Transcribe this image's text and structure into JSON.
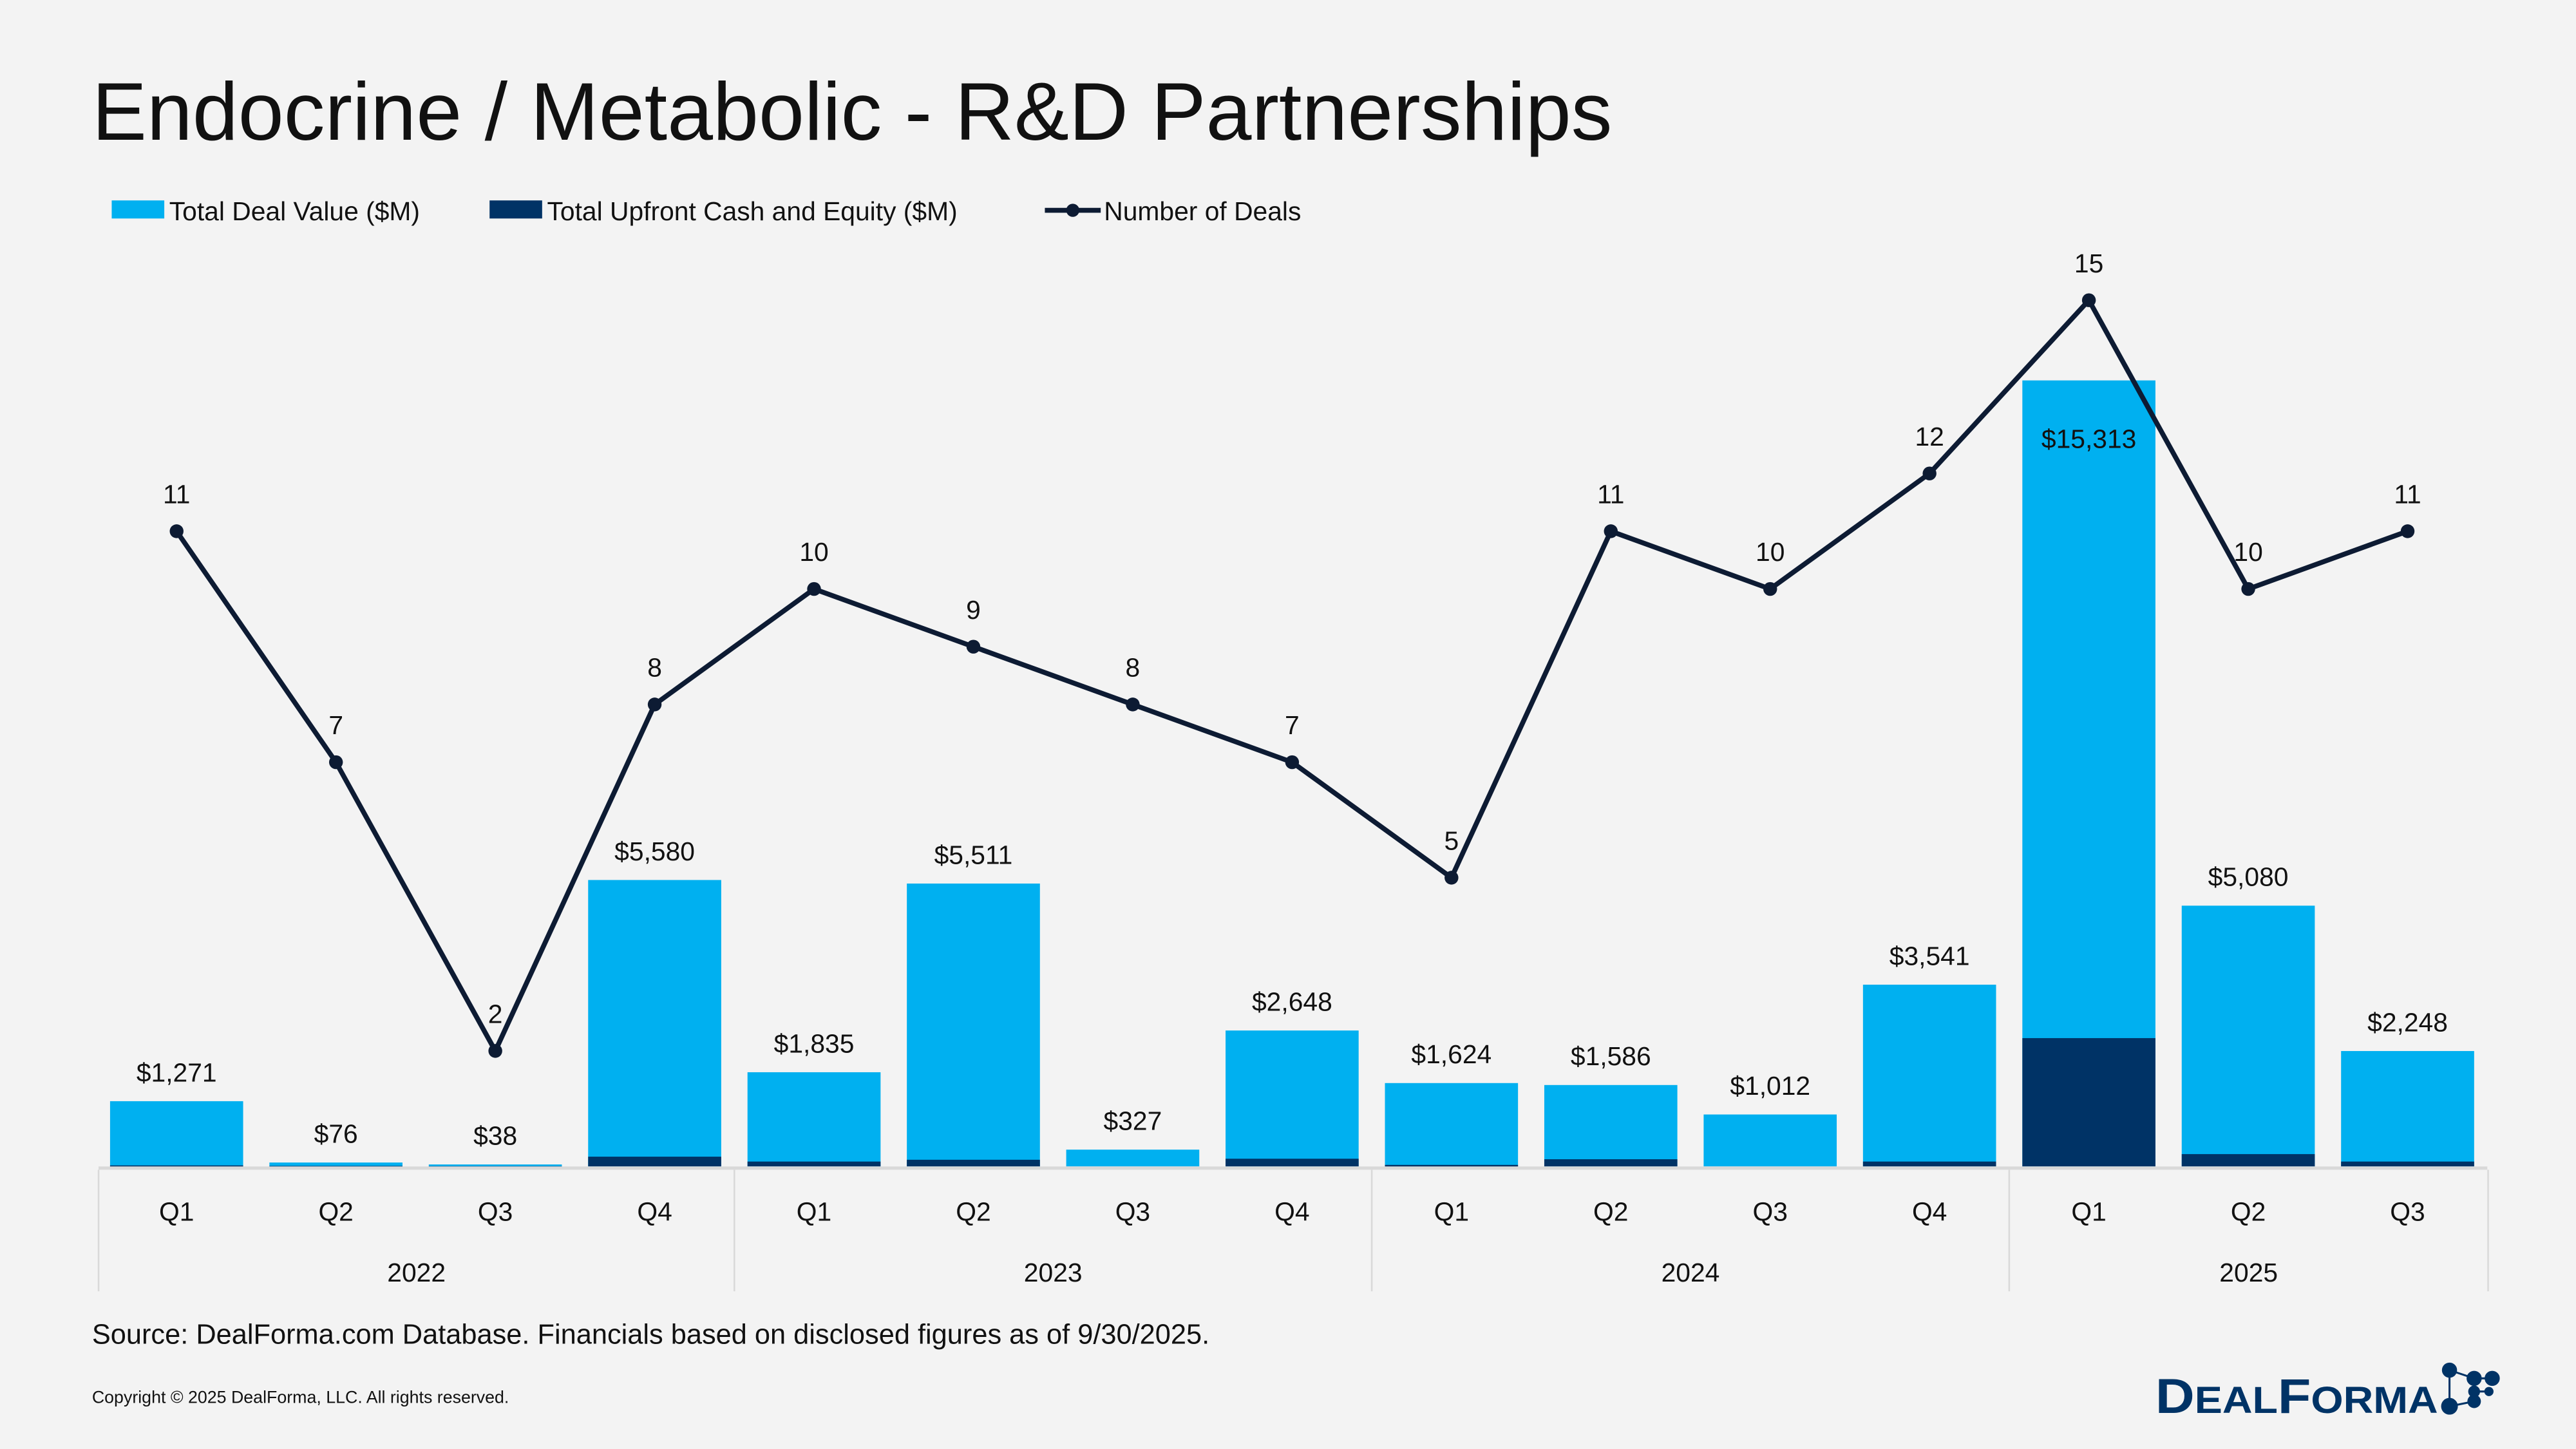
{
  "title": "Endocrine / Metabolic - R&D Partnerships",
  "legend": [
    {
      "label": "Total Deal Value ($M)",
      "color": "#00b0f0",
      "kind": "bar"
    },
    {
      "label": "Total Upfront Cash and Equity ($M)",
      "color": "#003366",
      "kind": "bar"
    },
    {
      "label": "Number of Deals",
      "color": "#0d1b33",
      "kind": "line"
    }
  ],
  "source": "Source: DealForma.com Database. Financials based on disclosed figures as of 9/30/2025.",
  "copyright": "Copyright © 2025 DealForma, LLC. All rights reserved.",
  "logo": {
    "text": "DEALFORMA",
    "color": "#003366"
  },
  "chart_data": {
    "type": "bar+line",
    "title": "Endocrine / Metabolic - R&D Partnerships",
    "years": [
      {
        "label": "2022",
        "quarters": [
          "Q1",
          "Q2",
          "Q3",
          "Q4"
        ]
      },
      {
        "label": "2023",
        "quarters": [
          "Q1",
          "Q2",
          "Q3",
          "Q4"
        ]
      },
      {
        "label": "2024",
        "quarters": [
          "Q1",
          "Q2",
          "Q3",
          "Q4"
        ]
      },
      {
        "label": "2025",
        "quarters": [
          "Q1",
          "Q2",
          "Q3"
        ]
      }
    ],
    "series": [
      {
        "name": "Total Deal Value ($M)",
        "type": "bar",
        "color": "#00b0f0",
        "values": [
          1271,
          76,
          38,
          5580,
          1835,
          5511,
          327,
          2648,
          1624,
          1586,
          1012,
          3541,
          15313,
          5080,
          2248
        ],
        "labels": [
          "$1,271",
          "$76",
          "$38",
          "$5,580",
          "$1,835",
          "$5,511",
          "$327",
          "$2,648",
          "$1,624",
          "$1,586",
          "$1,012",
          "$3,541",
          "$15,313",
          "$5,080",
          "$2,248"
        ]
      },
      {
        "name": "Total Upfront Cash and Equity ($M)",
        "type": "bar",
        "color": "#003366",
        "values": [
          20,
          10,
          5,
          190,
          95,
          130,
          0,
          150,
          30,
          140,
          0,
          95,
          2500,
          240,
          95
        ]
      },
      {
        "name": "Number of Deals",
        "type": "line",
        "color": "#0d1b33",
        "values": [
          11,
          7,
          2,
          8,
          10,
          9,
          8,
          7,
          5,
          11,
          10,
          12,
          15,
          10,
          11
        ]
      }
    ],
    "bar_ylim": [
      0,
      22500
    ],
    "line_ylim": [
      0,
      20
    ],
    "grid": false,
    "legend_position": "top-left"
  }
}
